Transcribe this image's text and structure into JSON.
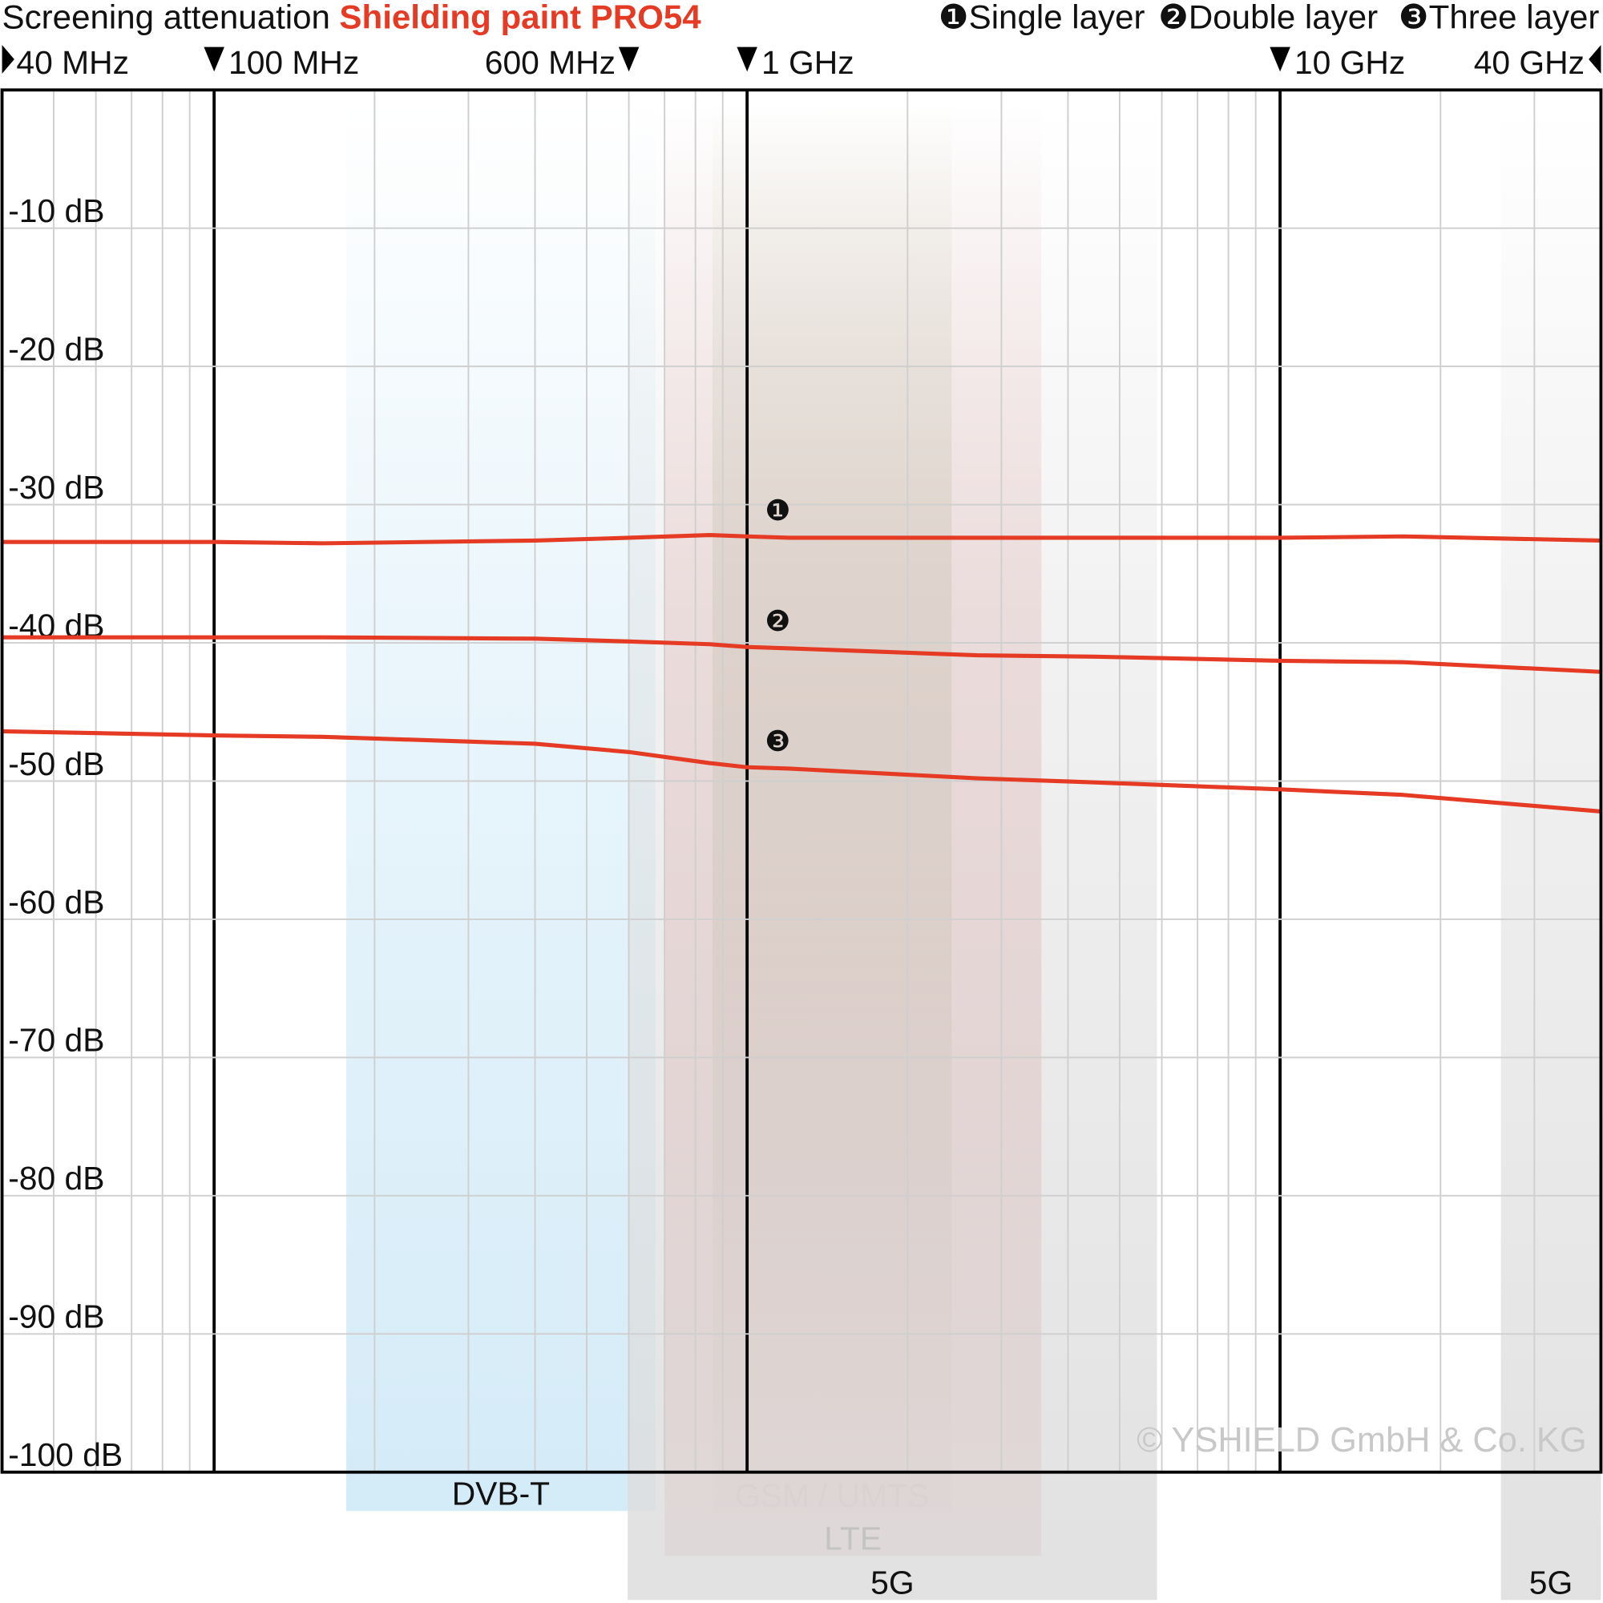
{
  "chart_data": {
    "type": "line",
    "title": "Screening attenuation",
    "product": "Shielding paint PRO54",
    "credit": "© YSHIELD GmbH & Co. KG",
    "x": [
      40,
      100,
      160,
      400,
      600,
      850,
      1000,
      1200,
      2700,
      4500,
      10000,
      17000,
      40000
    ],
    "xlim": [
      40,
      40000
    ],
    "xscale": "log",
    "xticks": [
      {
        "value": 40,
        "label": "40 MHz"
      },
      {
        "value": 100,
        "label": "100 MHz"
      },
      {
        "value": 600,
        "label": "600 MHz"
      },
      {
        "value": 1000,
        "label": "1 GHz"
      },
      {
        "value": 10000,
        "label": "10 GHz"
      },
      {
        "value": 40000,
        "label": "40 GHz"
      }
    ],
    "ylim": [
      -100,
      0
    ],
    "yticks": [
      {
        "value": -10,
        "label": "-10 dB"
      },
      {
        "value": -20,
        "label": "-20 dB"
      },
      {
        "value": -30,
        "label": "-30 dB"
      },
      {
        "value": -40,
        "label": "-40 dB"
      },
      {
        "value": -50,
        "label": "-50 dB"
      },
      {
        "value": -60,
        "label": "-60 dB"
      },
      {
        "value": -70,
        "label": "-70 dB"
      },
      {
        "value": -80,
        "label": "-80 dB"
      },
      {
        "value": -90,
        "label": "-90 dB"
      },
      {
        "value": -100,
        "label": "-100 dB"
      }
    ],
    "grid": true,
    "legend": "top-right",
    "series": [
      {
        "name": "Single layer",
        "marker": "❶",
        "color": "#e53a24",
        "values": [
          -32.7,
          -32.7,
          -32.8,
          -32.6,
          -32.4,
          -32.2,
          -32.3,
          -32.4,
          -32.4,
          -32.4,
          -32.4,
          -32.3,
          -32.6
        ]
      },
      {
        "name": "Double layer",
        "marker": "❷",
        "color": "#e53a24",
        "values": [
          -39.6,
          -39.6,
          -39.6,
          -39.7,
          -39.9,
          -40.1,
          -40.3,
          -40.4,
          -40.9,
          -41.0,
          -41.3,
          -41.4,
          -42.1
        ]
      },
      {
        "name": "Three layer",
        "marker": "❸",
        "color": "#e53a24",
        "values": [
          -46.4,
          -46.7,
          -46.8,
          -47.3,
          -47.9,
          -48.7,
          -49.0,
          -49.1,
          -49.8,
          -50.1,
          -50.6,
          -51.0,
          -52.2
        ]
      }
    ],
    "bands": [
      {
        "label": "DVB-T",
        "range": [
          177,
          673
        ],
        "color": "#cfe9f7"
      },
      {
        "label": "GSM / UMTS",
        "range": [
          861,
          2420
        ],
        "color": "#a6bd92"
      },
      {
        "label": "LTE",
        "range": [
          700,
          3565
        ],
        "color": "#e3a7a6"
      },
      {
        "label": "5G",
        "range": [
          597,
          5876
        ],
        "color": "#dedede"
      },
      {
        "label": "5G",
        "range": [
          25960,
          40000
        ],
        "color": "#dedede"
      }
    ]
  }
}
